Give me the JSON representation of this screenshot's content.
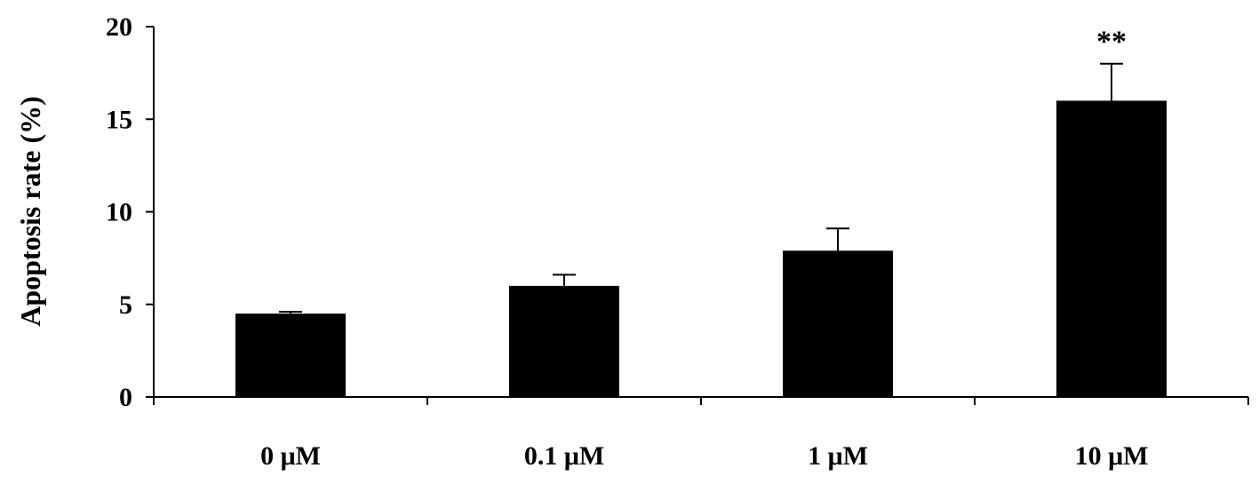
{
  "chart_data": {
    "type": "bar",
    "title": "",
    "xlabel": "",
    "ylabel": "Apoptosis rate (%)",
    "ylim": [
      0,
      20
    ],
    "yticks": [
      0,
      5,
      10,
      15,
      20
    ],
    "categories": [
      "0 μM",
      "0.1 μM",
      "1 μM",
      "10 μM"
    ],
    "values": [
      4.5,
      6.0,
      7.9,
      16.0
    ],
    "errors": [
      0.1,
      0.6,
      1.2,
      2.0
    ],
    "annotations": [
      "",
      "",
      "",
      "**"
    ],
    "grid": false,
    "colors": {
      "bar": "#000000",
      "axis": "#000000"
    }
  }
}
